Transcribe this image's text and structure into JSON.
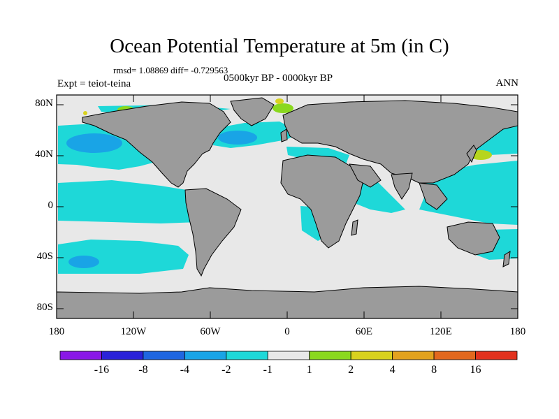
{
  "title": "Ocean Potential Temperature at 5m (in C)",
  "stats": "rmsd= 1.08869  diff= -0.729563",
  "experiment": "Expt = teiot-teina",
  "period": "0500kyr BP - 0000kyr BP",
  "season": "ANN",
  "y_axis": {
    "ticks": [
      "80N",
      "40N",
      "0",
      "40S",
      "80S"
    ]
  },
  "x_axis": {
    "ticks": [
      "180",
      "120W",
      "60W",
      "0",
      "60E",
      "120E",
      "180"
    ]
  },
  "colorbar": {
    "labels": [
      "-16",
      "-8",
      "-4",
      "-2",
      "-1",
      "1",
      "2",
      "4",
      "8",
      "16"
    ],
    "colors": [
      "#8a18e6",
      "#2a22d8",
      "#1f66e0",
      "#19a4e6",
      "#1ed8d8",
      "#e8e8e8",
      "#8ad81e",
      "#d8d21e",
      "#e2a21e",
      "#e2681e",
      "#e2321e"
    ]
  },
  "map_colors": {
    "land": "#9b9b9b",
    "ocean_neutral": "#e8e8e8",
    "cool_1": "#1ed8d8",
    "cool_2": "#19a4e6",
    "warm_1": "#8ad81e",
    "warm_2": "#d8d21e"
  }
}
